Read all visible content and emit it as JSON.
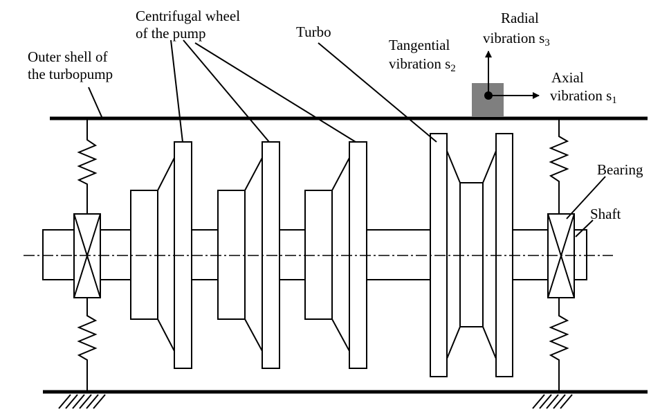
{
  "labels": {
    "centrifugal_1": "Centrifugal wheel",
    "centrifugal_2": "of the pump",
    "outer_1": "Outer shell of",
    "outer_2": "the turbopump",
    "turbo": "Turbo",
    "radial_1": "Radial",
    "radial_2": "vibration s",
    "radial_sub": "3",
    "tangential_1": "Tangential",
    "tangential_2": "vibration s",
    "tangential_sub": "2",
    "axial_1": "Axial",
    "axial_2": "vibration s",
    "axial_sub": "1",
    "bearing": "Bearing",
    "shaft": "Shaft"
  },
  "colors": {
    "sensor": "#7f7f7f",
    "line": "#000000"
  }
}
